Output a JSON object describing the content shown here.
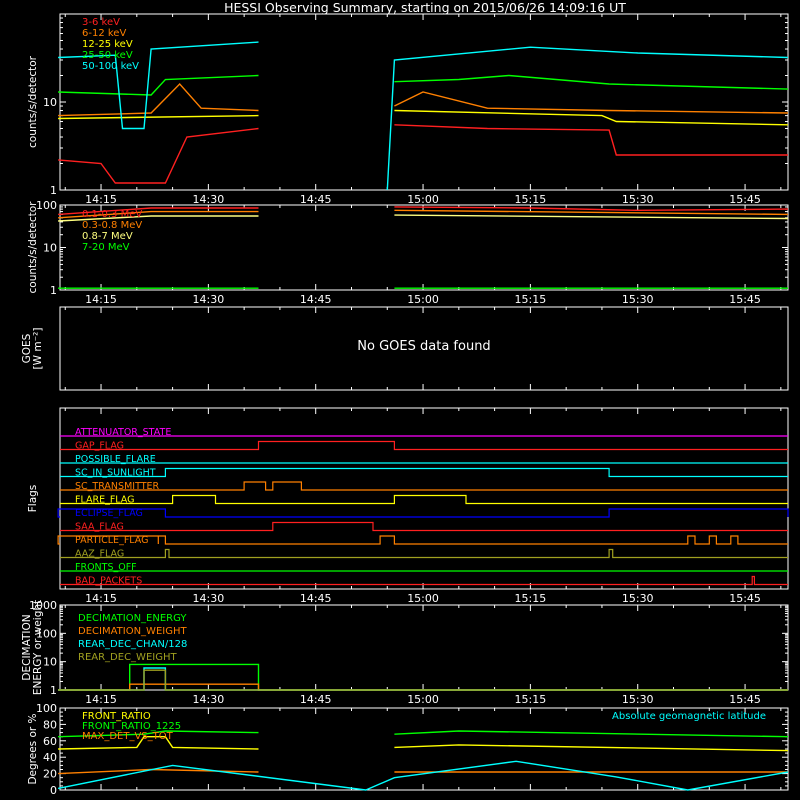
{
  "title": "HESSI Observing Summary, starting on 2015/06/26 14:09:16 UT",
  "time_ticks": [
    "14:15",
    "14:30",
    "14:45",
    "15:00",
    "15:15",
    "15:30",
    "15:45"
  ],
  "colors": {
    "red": "#ff2020",
    "orange": "#ff8000",
    "yellow": "#ffff00",
    "lightyellow": "#ffff80",
    "green": "#00ff00",
    "cyan": "#00ffff",
    "magenta": "#ff00ff",
    "blue": "#0000ff",
    "olive": "#a0a020",
    "darkred": "#e02020",
    "white": "#ffffff"
  },
  "chart_data": [
    {
      "type": "line",
      "ylabel": "counts/s/detector",
      "yscale": "log",
      "ylim": [
        1,
        100
      ],
      "ytick_labels": [
        "1",
        "10"
      ],
      "x_range": [
        "14:09",
        "15:51"
      ],
      "data_gaps": [
        [
          "14:37",
          "14:56"
        ]
      ],
      "legend": [
        "3-6 keV",
        "6-12 keV",
        "12-25 keV",
        "25-50 keV",
        "50-100 keV"
      ],
      "series": [
        {
          "name": "3-6 keV",
          "color": "#ff2020",
          "segments": [
            [
              [
                "14:09",
                2.2
              ],
              [
                "14:15",
                2.0
              ],
              [
                "14:17",
                1.2
              ],
              [
                "14:24",
                1.2
              ],
              [
                "14:27",
                4.0
              ],
              [
                "14:37",
                5.0
              ]
            ],
            [
              [
                "14:56",
                5.5
              ],
              [
                "15:09",
                5.0
              ],
              [
                "15:26",
                4.8
              ],
              [
                "15:27",
                2.5
              ],
              [
                "15:51",
                2.5
              ]
            ]
          ]
        },
        {
          "name": "6-12 keV",
          "color": "#ff8000",
          "segments": [
            [
              [
                "14:09",
                7.0
              ],
              [
                "14:22",
                7.5
              ],
              [
                "14:26",
                16
              ],
              [
                "14:29",
                8.5
              ],
              [
                "14:37",
                8.0
              ]
            ],
            [
              [
                "14:56",
                9.0
              ],
              [
                "15:00",
                13
              ],
              [
                "15:09",
                8.5
              ],
              [
                "15:26",
                8.0
              ],
              [
                "15:51",
                7.5
              ]
            ]
          ]
        },
        {
          "name": "12-25 keV",
          "color": "#ffff00",
          "segments": [
            [
              [
                "14:09",
                6.5
              ],
              [
                "14:37",
                7.0
              ]
            ],
            [
              [
                "14:56",
                8.0
              ],
              [
                "15:25",
                7.0
              ],
              [
                "15:27",
                6.0
              ],
              [
                "15:51",
                5.5
              ]
            ]
          ]
        },
        {
          "name": "25-50 keV",
          "color": "#00ff00",
          "segments": [
            [
              [
                "14:09",
                13
              ],
              [
                "14:22",
                12
              ],
              [
                "14:24",
                18
              ],
              [
                "14:37",
                20
              ]
            ],
            [
              [
                "14:56",
                17
              ],
              [
                "15:05",
                18
              ],
              [
                "15:12",
                20
              ],
              [
                "15:26",
                16
              ],
              [
                "15:51",
                14
              ]
            ]
          ]
        },
        {
          "name": "50-100 keV",
          "color": "#00ffff",
          "segments": [
            [
              [
                "14:09",
                32
              ],
              [
                "14:17",
                34
              ],
              [
                "14:18",
                5
              ],
              [
                "14:21",
                5
              ],
              [
                "14:22",
                40
              ],
              [
                "14:37",
                48
              ]
            ],
            [
              [
                "14:55",
                1
              ],
              [
                "14:56",
                30
              ],
              [
                "15:15",
                42
              ],
              [
                "15:30",
                36
              ],
              [
                "15:51",
                32
              ]
            ]
          ]
        }
      ]
    },
    {
      "type": "line",
      "ylabel": "counts/s/detector",
      "yscale": "log",
      "ylim": [
        1,
        100
      ],
      "ytick_labels": [
        "1",
        "10",
        "100"
      ],
      "x_range": [
        "14:09",
        "15:51"
      ],
      "legend": [
        "0.1-0.3 MeV",
        "0.3-0.8 MeV",
        "0.8-7 MeV",
        "7-20 MeV"
      ],
      "series": [
        {
          "name": "0.1-0.3 MeV",
          "color": "#ff2020",
          "segments": [
            [
              [
                "14:09",
                60
              ],
              [
                "14:22",
                85
              ],
              [
                "14:37",
                85
              ]
            ],
            [
              [
                "14:56",
                90
              ],
              [
                "15:15",
                85
              ],
              [
                "15:30",
                75
              ],
              [
                "15:51",
                80
              ]
            ]
          ]
        },
        {
          "name": "0.3-0.8 MeV",
          "color": "#ff8000",
          "segments": [
            [
              [
                "14:09",
                50
              ],
              [
                "14:22",
                70
              ],
              [
                "14:37",
                70
              ]
            ],
            [
              [
                "14:56",
                75
              ],
              [
                "15:51",
                60
              ]
            ]
          ]
        },
        {
          "name": "0.8-7 MeV",
          "color": "#ffff80",
          "segments": [
            [
              [
                "14:09",
                42
              ],
              [
                "14:22",
                55
              ],
              [
                "14:37",
                55
              ]
            ],
            [
              [
                "14:56",
                58
              ],
              [
                "15:51",
                48
              ]
            ]
          ]
        },
        {
          "name": "7-20 MeV",
          "color": "#00ff00",
          "segments": [
            [
              [
                "14:09",
                1.1
              ],
              [
                "14:37",
                1.1
              ]
            ],
            [
              [
                "14:56",
                1.1
              ],
              [
                "15:51",
                1.1
              ]
            ]
          ]
        }
      ]
    },
    {
      "type": "line",
      "ylabel": "GOES\n[W m⁻²]",
      "message": "No GOES data found"
    },
    {
      "type": "line",
      "ylabel": "Flags",
      "flags": [
        {
          "name": "ATTENUATOR_STATE",
          "color": "#ff00ff",
          "highs": []
        },
        {
          "name": "GAP_FLAG",
          "color": "#ff2020",
          "highs": [
            [
              "14:37",
              "14:56"
            ]
          ]
        },
        {
          "name": "POSSIBLE_FLARE",
          "color": "#00ffff",
          "highs": []
        },
        {
          "name": "SC_IN_SUNLIGHT",
          "color": "#00ffff",
          "highs": [
            [
              "14:24",
              "15:26"
            ]
          ]
        },
        {
          "name": "SC_TRANSMITTER",
          "color": "#ff8000",
          "highs": [
            [
              "14:35",
              "14:38"
            ],
            [
              "14:39",
              "14:43"
            ]
          ]
        },
        {
          "name": "FLARE_FLAG",
          "color": "#ffff00",
          "highs": [
            [
              "14:25",
              "14:31"
            ],
            [
              "14:56",
              "15:06"
            ]
          ]
        },
        {
          "name": "ECLIPSE_FLAG",
          "color": "#0000ff",
          "highs": [
            [
              "14:09",
              "14:24"
            ],
            [
              "15:26",
              "15:51"
            ]
          ]
        },
        {
          "name": "SAA_FLAG",
          "color": "#ff2020",
          "highs": [
            [
              "14:39",
              "14:53"
            ]
          ]
        },
        {
          "name": "PARTICLE_FLAG",
          "color": "#ff8000",
          "highs": [
            [
              "14:09",
              "14:23"
            ],
            [
              "14:23",
              "14:24"
            ],
            [
              "14:54",
              "14:56"
            ],
            [
              "15:37",
              "15:38"
            ],
            [
              "15:40",
              "15:41"
            ],
            [
              "15:43",
              "15:44"
            ]
          ]
        },
        {
          "name": "AAZ_FLAG",
          "color": "#a0a020",
          "highs": [
            [
              "14:24",
              "14:24.5"
            ],
            [
              "15:26",
              "15:26.5"
            ]
          ]
        },
        {
          "name": "FRONTS_OFF",
          "color": "#00ff00",
          "highs": []
        },
        {
          "name": "BAD_PACKETS",
          "color": "#ff2020",
          "highs": [
            [
              "15:46",
              "15:46.3"
            ]
          ]
        }
      ]
    },
    {
      "type": "line",
      "ylabel": "DECIMATION\nENERGY or weight",
      "yscale": "log",
      "ylim": [
        1,
        1000
      ],
      "ytick_labels": [
        "1",
        "10",
        "100",
        "1000"
      ],
      "legend": [
        "DECIMATION_ENERGY",
        "DECIMATION_WEIGHT",
        "REAR_DEC_CHAN/128",
        "REAR_DEC_WEIGHT"
      ],
      "series": [
        {
          "name": "DECIMATION_ENERGY",
          "color": "#00ff00",
          "segments": [
            [
              [
                "14:09",
                1
              ],
              [
                "14:19",
                1
              ],
              [
                "14:19",
                8
              ],
              [
                "14:37",
                8
              ],
              [
                "14:37",
                1
              ],
              [
                "15:51",
                1
              ]
            ]
          ]
        },
        {
          "name": "DECIMATION_WEIGHT",
          "color": "#ff8000",
          "segments": [
            [
              [
                "14:09",
                1
              ],
              [
                "14:19",
                1
              ],
              [
                "14:19",
                1.6
              ],
              [
                "14:37",
                1.6
              ],
              [
                "14:37",
                1
              ],
              [
                "15:51",
                1
              ]
            ]
          ]
        },
        {
          "name": "REAR_DEC_CHAN/128",
          "color": "#00ffff",
          "segments": [
            [
              [
                "14:09",
                1
              ],
              [
                "14:21",
                1
              ],
              [
                "14:21",
                6
              ],
              [
                "14:24",
                6
              ],
              [
                "14:24",
                1
              ],
              [
                "15:51",
                1
              ]
            ]
          ]
        },
        {
          "name": "REAR_DEC_WEIGHT",
          "color": "#a0a020",
          "segments": [
            [
              [
                "14:09",
                1
              ],
              [
                "14:21",
                1
              ],
              [
                "14:21",
                5
              ],
              [
                "14:24",
                5
              ],
              [
                "14:24",
                1
              ],
              [
                "15:51",
                1
              ]
            ]
          ]
        }
      ]
    },
    {
      "type": "line",
      "ylabel": "Degrees or %",
      "ylim": [
        0,
        100
      ],
      "ytick_labels": [
        "0",
        "20",
        "40",
        "60",
        "80",
        "100"
      ],
      "legend": [
        "FRONT_RATIO",
        "FRONT_RATIO_1225",
        "MAX_DET_VS_TOT"
      ],
      "annotation": "Absolute geomagnetic latitude",
      "series": [
        {
          "name": "FRONT_RATIO",
          "color": "#ffff00",
          "segments": [
            [
              [
                "14:09",
                50
              ],
              [
                "14:20",
                52
              ],
              [
                "14:21",
                65
              ],
              [
                "14:24",
                65
              ],
              [
                "14:25",
                52
              ],
              [
                "14:37",
                50
              ]
            ],
            [
              [
                "14:56",
                52
              ],
              [
                "15:05",
                55
              ],
              [
                "15:51",
                48
              ]
            ]
          ]
        },
        {
          "name": "FRONT_RATIO_1225",
          "color": "#00ff00",
          "segments": [
            [
              [
                "14:09",
                65
              ],
              [
                "14:21",
                68
              ],
              [
                "14:24",
                72
              ],
              [
                "14:37",
                70
              ]
            ],
            [
              [
                "14:56",
                68
              ],
              [
                "15:05",
                72
              ],
              [
                "15:51",
                65
              ]
            ]
          ]
        },
        {
          "name": "MAX_DET_VS_TOT",
          "color": "#ff8000",
          "segments": [
            [
              [
                "14:09",
                20
              ],
              [
                "14:22",
                25
              ],
              [
                "14:37",
                22
              ]
            ],
            [
              [
                "14:56",
                22
              ],
              [
                "15:51",
                22
              ]
            ]
          ]
        },
        {
          "name": "Absolute geomagnetic latitude",
          "color": "#00ffff",
          "segments": [
            [
              [
                "14:09",
                2
              ],
              [
                "14:25",
                30
              ],
              [
                "14:52",
                0
              ],
              [
                "14:56",
                15
              ],
              [
                "15:13",
                35
              ],
              [
                "15:27",
                16
              ],
              [
                "15:37",
                0
              ],
              [
                "15:51",
                22
              ]
            ]
          ]
        }
      ]
    }
  ]
}
